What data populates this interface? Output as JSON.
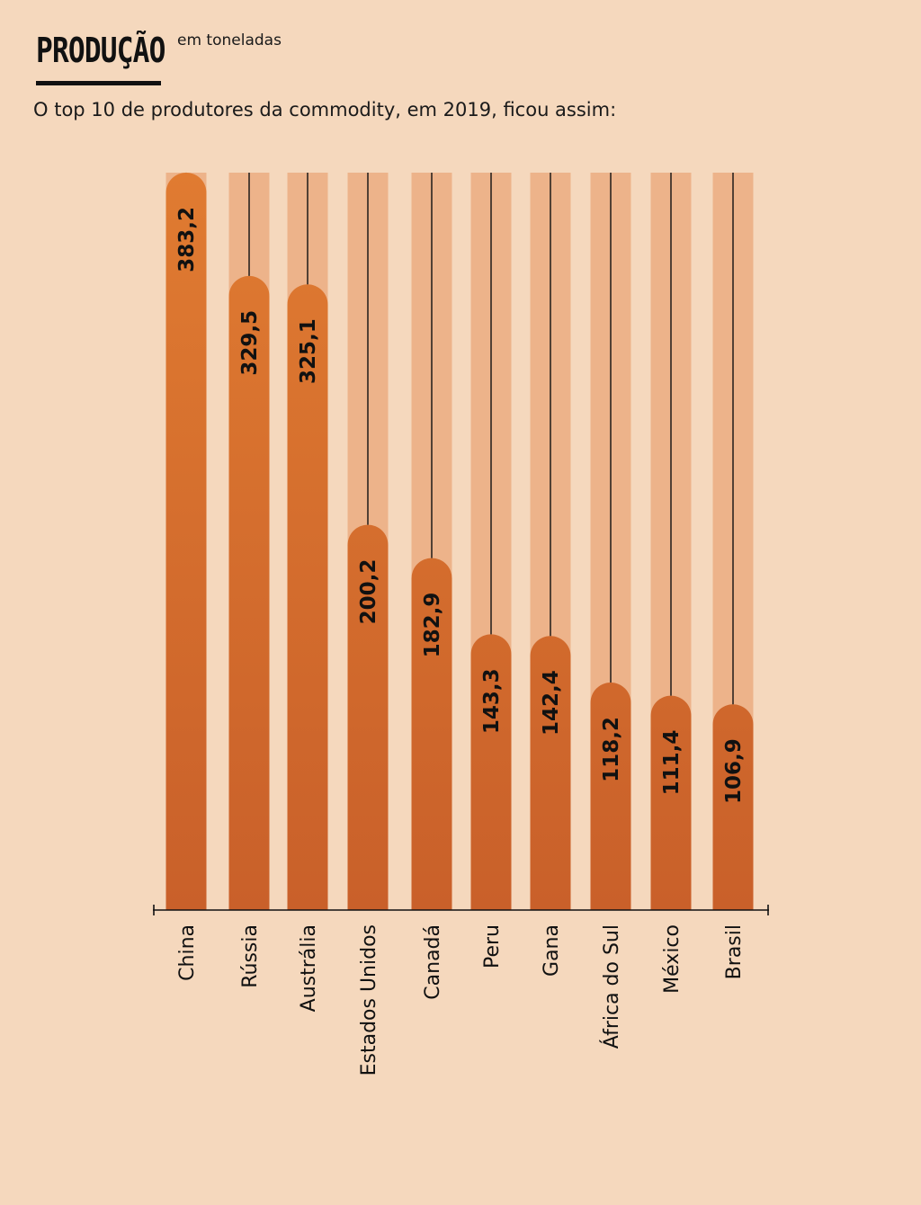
{
  "header": {
    "title": "PRODUÇÃO",
    "unit": "em toneladas",
    "subtitle": "O top 10 de produtores da commodity, em 2019, ficou assim:"
  },
  "colors": {
    "background": "#f5d8bd",
    "track": "#edb38a",
    "bar_top": "#e07b31",
    "bar_bottom": "#c9602a",
    "ink": "#111111"
  },
  "chart_data": {
    "type": "bar",
    "orientation": "vertical",
    "title": "PRODUÇÃO",
    "unit": "em toneladas",
    "categories": [
      "China",
      "Rússia",
      "Austrália",
      "Estados Unidos",
      "Canadá",
      "Peru",
      "Gana",
      "África do Sul",
      "México",
      "Brasil"
    ],
    "values": [
      383.2,
      329.5,
      325.1,
      200.2,
      182.9,
      143.3,
      142.4,
      118.2,
      111.4,
      106.9
    ],
    "value_labels": [
      "383,2",
      "329,5",
      "325,1",
      "200,2",
      "182,9",
      "143,3",
      "142,4",
      "118,2",
      "111,4",
      "106,9"
    ],
    "ylim": [
      0,
      420
    ],
    "grid": false,
    "legend": "none",
    "value_label_rotation": "vertical",
    "category_label_rotation": "vertical"
  }
}
